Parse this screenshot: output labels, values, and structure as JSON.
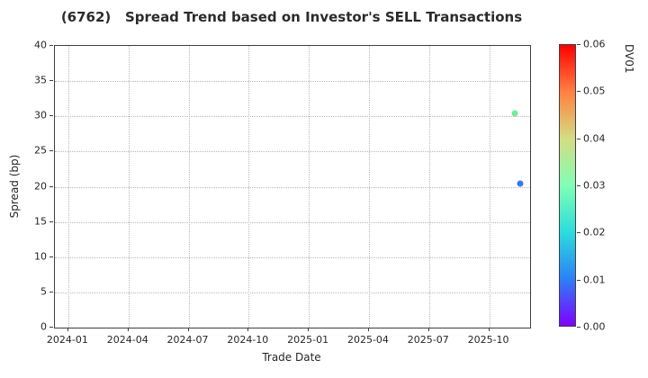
{
  "accent_colors": {
    "grid": "#b8b8b8",
    "spine": "#404040",
    "text": "#262626"
  },
  "chart_data": {
    "type": "scatter",
    "title": "(6762)   Spread Trend based on Investor's SELL Transactions",
    "xlabel": "Trade Date",
    "ylabel": "Spread (bp)",
    "x_tick_labels": [
      "2024-01",
      "2024-04",
      "2024-07",
      "2024-10",
      "2025-01",
      "2025-04",
      "2025-07",
      "2025-10"
    ],
    "y_tick_labels": [
      "0",
      "5",
      "10",
      "15",
      "20",
      "25",
      "30",
      "35",
      "40"
    ],
    "ylim": [
      0,
      40
    ],
    "xlim_months_from_2024_01": [
      -0.67,
      23.04
    ],
    "grid": "dotted",
    "legend": "none",
    "points": [
      {
        "trade_date": "2025-11-10",
        "spread_bp": 30.4,
        "dv01": 0.03,
        "color": "#6feb9e"
      },
      {
        "trade_date": "2025-11-18",
        "spread_bp": 20.4,
        "dv01": 0.01,
        "color": "#2e7cf1"
      }
    ],
    "colorbar": {
      "label": "DV01",
      "min": 0.0,
      "max": 0.06,
      "tick_labels": [
        "0.00",
        "0.01",
        "0.02",
        "0.03",
        "0.04",
        "0.05",
        "0.06"
      ],
      "colormap": "rainbow",
      "gradient_stops_bottom_to_top": [
        "#8000ff",
        "#2b80f6",
        "#2bdddd",
        "#80ffb4",
        "#d4dd80",
        "#ff8042",
        "#ff0000"
      ]
    }
  }
}
